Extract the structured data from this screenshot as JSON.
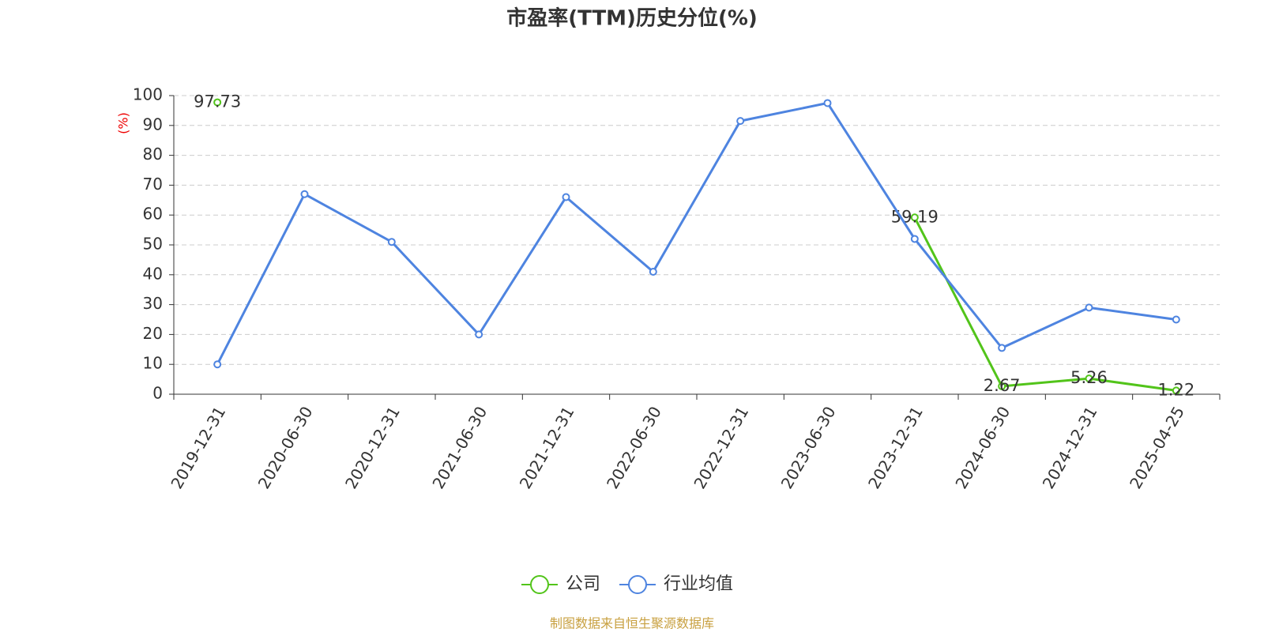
{
  "chart_data": {
    "type": "line",
    "title": "市盈率(TTM)历史分位(%)",
    "y_label": "(%)",
    "source": "制图数据来自恒生聚源数据库",
    "categories": [
      "2019-12-31",
      "2020-06-30",
      "2020-12-31",
      "2021-06-30",
      "2021-12-31",
      "2022-06-30",
      "2022-12-31",
      "2023-06-30",
      "2023-12-31",
      "2024-06-30",
      "2024-12-31",
      "2025-04-25"
    ],
    "series": [
      {
        "name": "公司",
        "color": "#52c41a",
        "data_labels": true,
        "values": [
          97.73,
          null,
          null,
          null,
          null,
          null,
          null,
          null,
          59.19,
          2.67,
          5.26,
          1.22
        ]
      },
      {
        "name": "行业均值",
        "color": "#4e84e0",
        "data_labels": false,
        "values": [
          10,
          67,
          51,
          20,
          66,
          41,
          91.5,
          97.5,
          52,
          15.5,
          29,
          25
        ]
      }
    ],
    "ylim": [
      0,
      100
    ],
    "yticks": [
      0,
      10,
      20,
      30,
      40,
      50,
      60,
      70,
      80,
      90,
      100
    ],
    "grid": true,
    "legend": "bottom"
  }
}
